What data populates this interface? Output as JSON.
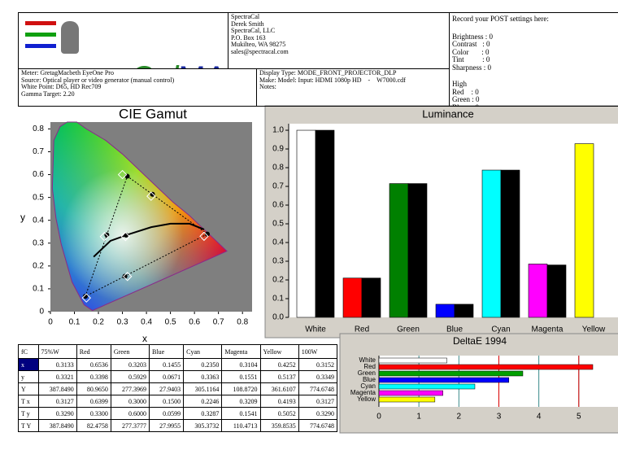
{
  "logo": [
    "Cal",
    "MAN",
    "™"
  ],
  "contact": [
    "SpectraCal",
    "Derek Smith",
    "SpectraCal, LLC",
    "P.O. Box 163",
    "Mukilteo, WA 98275",
    "sales@spectracal.com"
  ],
  "settings": {
    "title": "Record your POST settings here:",
    "lines": [
      "Brightness : 0",
      "Contrast   : 0",
      "Color       : 0",
      "Tint          : 0",
      "Sharpness : 0"
    ],
    "high": "High",
    "high_lines": [
      "Red    : 0",
      "Green : 0",
      "Blue   : 0"
    ]
  },
  "meter": [
    "Meter: GretagMacbeth EyeOne Pro",
    "Source: Optical player or video generator (manual control)",
    "White Point: D65, HD Rec709",
    "Gamma Target: 2.20"
  ],
  "display": [
    "Display Type: MODE_FRONT_PROJECTOR_DLP",
    "Make: Model: Input: HDMI 1080p HD    -    W7000.cdf",
    "Notes:"
  ],
  "table": {
    "header": [
      "fC",
      "75%W",
      "Red",
      "Green",
      "Blue",
      "Cyan",
      "Magenta",
      "Yellow",
      "100W"
    ],
    "rows": [
      [
        "x",
        "0.3133",
        "0.6536",
        "0.3203",
        "0.1455",
        "0.2350",
        "0.3104",
        "0.4252",
        "0.3152"
      ],
      [
        "y",
        "0.3321",
        "0.3398",
        "0.5929",
        "0.0671",
        "0.3363",
        "0.1551",
        "0.5137",
        "0.3349"
      ],
      [
        "Y",
        "387.8490",
        "80.9650",
        "277.3969",
        "27.9403",
        "305.1164",
        "108.8720",
        "361.6107",
        "774.6748"
      ],
      [
        "T x",
        "0.3127",
        "0.6399",
        "0.3000",
        "0.1500",
        "0.2246",
        "0.3209",
        "0.4193",
        "0.3127"
      ],
      [
        "T y",
        "0.3290",
        "0.3300",
        "0.6000",
        "0.0599",
        "0.3287",
        "0.1541",
        "0.5052",
        "0.3290"
      ],
      [
        "T Y",
        "387.8490",
        "82.4758",
        "277.3777",
        "27.9955",
        "305.3732",
        "110.4713",
        "359.8535",
        "774.6748"
      ]
    ]
  },
  "chart_data": [
    {
      "type": "scatter",
      "title": "CIE Gamut",
      "x_label": "x",
      "y_label": "y",
      "xlim": [
        0,
        0.84
      ],
      "ylim": [
        0,
        0.83
      ],
      "xticks": [
        0,
        0.1,
        0.2,
        0.3,
        0.4,
        0.5,
        0.6,
        0.7,
        0.8
      ],
      "yticks": [
        0,
        0.1,
        0.2,
        0.3,
        0.4,
        0.5,
        0.6,
        0.7,
        0.8
      ],
      "series": [
        {
          "marker": "circle",
          "color": "#000000",
          "x": [
            0.6536,
            0.3203,
            0.1455,
            0.235,
            0.3104,
            0.4252,
            0.3152
          ],
          "y": [
            0.3398,
            0.5929,
            0.0671,
            0.3363,
            0.1551,
            0.5137,
            0.3349
          ]
        },
        {
          "marker": "diamond",
          "color": "#ffffff",
          "x": [
            0.6399,
            0.3,
            0.15,
            0.2246,
            0.3209,
            0.4193,
            0.3127
          ],
          "y": [
            0.33,
            0.6,
            0.0599,
            0.3287,
            0.1541,
            0.5052,
            0.329
          ]
        }
      ]
    },
    {
      "type": "bar",
      "title": "Luminance",
      "categories": [
        "White",
        "Red",
        "Green",
        "Blue",
        "Cyan",
        "Magenta",
        "Yellow"
      ],
      "ylim": [
        0,
        1.035
      ],
      "yticks": [
        {
          "value": 0,
          "label": "0.0"
        },
        0.1,
        0.2,
        0.3,
        0.4,
        0.5,
        0.6,
        0.7,
        0.8,
        0.9,
        {
          "value": 1,
          "label": "1.0"
        }
      ],
      "series": [
        {
          "colors": [
            "#ffffff",
            "#ff0000",
            "#008000",
            "#0000ff",
            "#00ffff",
            "#ff00ff",
            "#ffff00"
          ],
          "values": [
            1.0,
            0.21,
            0.715,
            0.07,
            0.787,
            0.285,
            0.928
          ]
        },
        {
          "color": "#000000",
          "values": [
            1.0,
            0.21,
            0.715,
            0.07,
            0.787,
            0.28,
            null
          ]
        }
      ]
    },
    {
      "type": "hbar",
      "title": "DeltaE 1994",
      "categories": [
        "White",
        "Red",
        "Green",
        "Blue",
        "Cyan",
        "Magenta",
        "Yellow"
      ],
      "values": [
        1.7,
        5.35,
        3.6,
        3.25,
        2.4,
        1.6,
        1.4
      ],
      "colors": [
        "#ffffff",
        "#ff0000",
        "#00a000",
        "#0000ff",
        "#00ffff",
        "#ff00ff",
        "#ffff00"
      ],
      "xlim": [
        0,
        5.35
      ],
      "xticks": [
        0,
        1,
        2,
        3,
        4,
        5
      ],
      "grid": true,
      "grid_color": "#3a8a8a",
      "reference_lines": [
        3,
        5
      ],
      "reference_color": "#e00000"
    }
  ]
}
